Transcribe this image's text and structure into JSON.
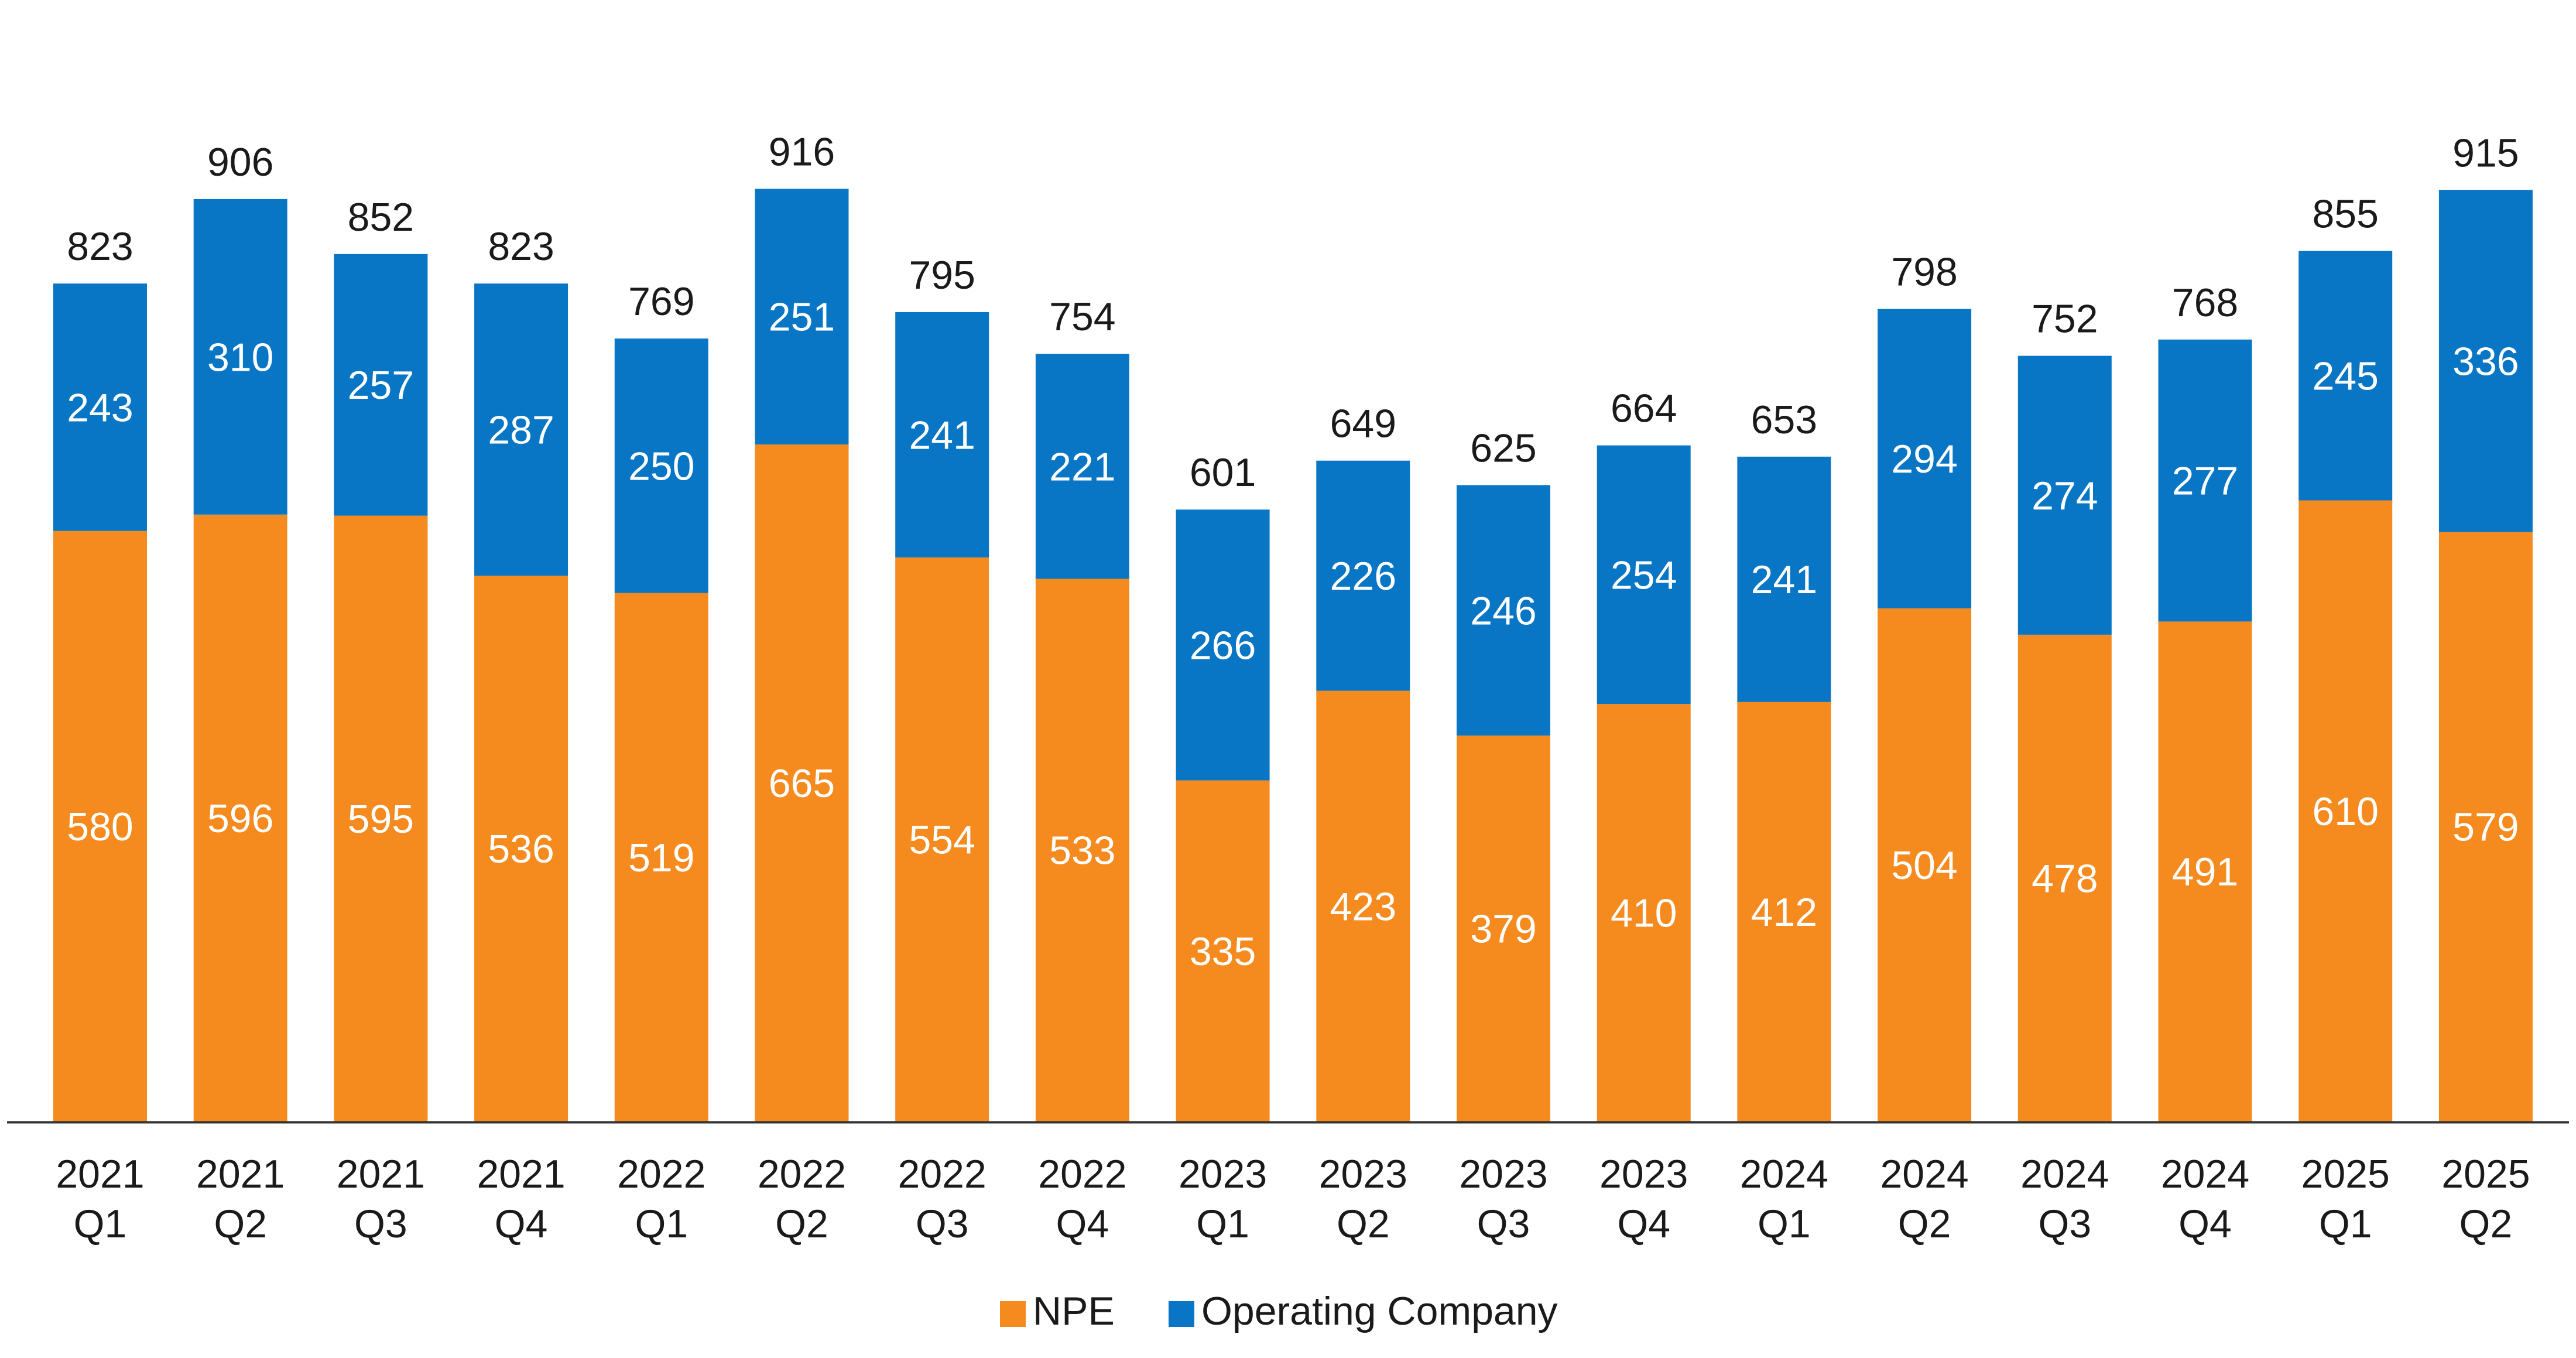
{
  "chart_data": {
    "type": "bar",
    "stacked": true,
    "title": "",
    "xlabel": "",
    "ylabel": "",
    "ylim": [
      0,
      1000
    ],
    "grid": false,
    "legend_position": "bottom",
    "categories": [
      [
        "2021",
        "Q1"
      ],
      [
        "2021",
        "Q2"
      ],
      [
        "2021",
        "Q3"
      ],
      [
        "2021",
        "Q4"
      ],
      [
        "2022",
        "Q1"
      ],
      [
        "2022",
        "Q2"
      ],
      [
        "2022",
        "Q3"
      ],
      [
        "2022",
        "Q4"
      ],
      [
        "2023",
        "Q1"
      ],
      [
        "2023",
        "Q2"
      ],
      [
        "2023",
        "Q3"
      ],
      [
        "2023",
        "Q4"
      ],
      [
        "2024",
        "Q1"
      ],
      [
        "2024",
        "Q2"
      ],
      [
        "2024",
        "Q3"
      ],
      [
        "2024",
        "Q4"
      ],
      [
        "2025",
        "Q1"
      ],
      [
        "2025",
        "Q2"
      ]
    ],
    "series": [
      {
        "name": "NPE",
        "color": "#F58A1F",
        "values": [
          580,
          596,
          595,
          536,
          519,
          665,
          554,
          533,
          335,
          423,
          379,
          410,
          412,
          504,
          478,
          491,
          610,
          579
        ]
      },
      {
        "name": "Operating Company",
        "color": "#0876C4",
        "values": [
          243,
          310,
          257,
          287,
          250,
          251,
          241,
          221,
          266,
          226,
          246,
          254,
          241,
          294,
          274,
          277,
          245,
          336
        ]
      }
    ],
    "totals": [
      823,
      906,
      852,
      823,
      769,
      916,
      795,
      754,
      601,
      649,
      625,
      664,
      653,
      798,
      752,
      768,
      855,
      915
    ]
  }
}
